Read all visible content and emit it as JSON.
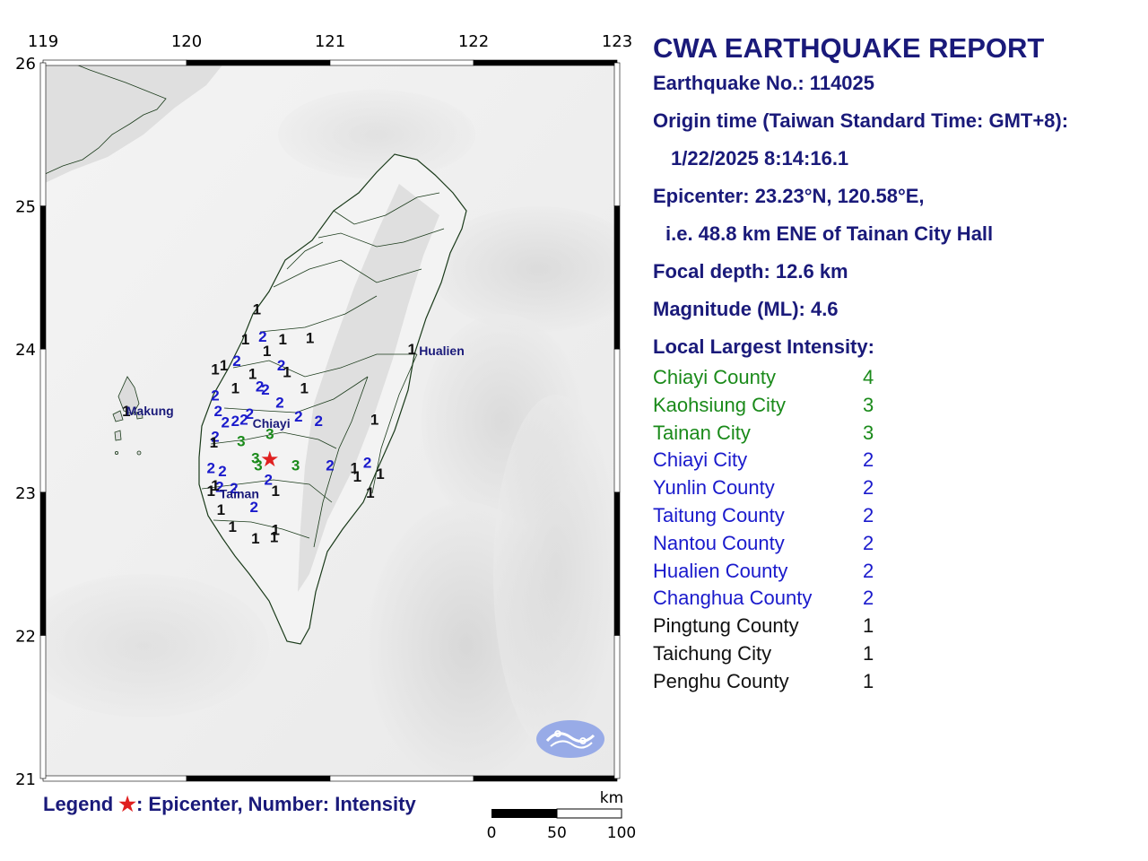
{
  "map": {
    "lon_ticks": [
      "119",
      "120",
      "121",
      "122",
      "123"
    ],
    "lat_ticks": [
      "26",
      "25",
      "24",
      "23",
      "22",
      "21"
    ],
    "extent": {
      "lon": [
        119,
        123
      ],
      "lat": [
        21,
        26
      ]
    },
    "epicenter": {
      "lon": 120.58,
      "lat": 23.23,
      "color": "#e02020",
      "symbol": "★"
    },
    "places": [
      {
        "label": "Hualien",
        "lon": 121.62,
        "lat": 23.99
      },
      {
        "label": "Makung",
        "lon": 119.58,
        "lat": 23.57
      },
      {
        "label": "Chiayi",
        "lon": 120.46,
        "lat": 23.48
      },
      {
        "label": "Tainan",
        "lon": 120.23,
        "lat": 22.99
      }
    ],
    "intensity_colors": {
      "1": "#111111",
      "2": "#1a1acc",
      "3": "#1a8a1a",
      "4": "#1a8a1a"
    },
    "stations": [
      {
        "lon": 120.49,
        "lat": 24.28,
        "v": "1"
      },
      {
        "lon": 120.41,
        "lat": 24.07,
        "v": "1"
      },
      {
        "lon": 120.53,
        "lat": 24.09,
        "v": "2"
      },
      {
        "lon": 120.67,
        "lat": 24.07,
        "v": "1"
      },
      {
        "lon": 120.86,
        "lat": 24.08,
        "v": "1"
      },
      {
        "lon": 120.56,
        "lat": 23.99,
        "v": "1"
      },
      {
        "lon": 120.35,
        "lat": 23.92,
        "v": "2"
      },
      {
        "lon": 120.26,
        "lat": 23.89,
        "v": "1"
      },
      {
        "lon": 120.2,
        "lat": 23.86,
        "v": "1"
      },
      {
        "lon": 120.66,
        "lat": 23.89,
        "v": "2"
      },
      {
        "lon": 120.46,
        "lat": 23.83,
        "v": "1"
      },
      {
        "lon": 120.7,
        "lat": 23.84,
        "v": "1"
      },
      {
        "lon": 120.51,
        "lat": 23.74,
        "v": "2"
      },
      {
        "lon": 120.55,
        "lat": 23.72,
        "v": "2"
      },
      {
        "lon": 120.34,
        "lat": 23.73,
        "v": "1"
      },
      {
        "lon": 120.82,
        "lat": 23.73,
        "v": "1"
      },
      {
        "lon": 120.2,
        "lat": 23.68,
        "v": "2"
      },
      {
        "lon": 120.65,
        "lat": 23.63,
        "v": "2"
      },
      {
        "lon": 120.22,
        "lat": 23.57,
        "v": "2"
      },
      {
        "lon": 120.27,
        "lat": 23.49,
        "v": "2"
      },
      {
        "lon": 120.44,
        "lat": 23.55,
        "v": "2"
      },
      {
        "lon": 120.4,
        "lat": 23.51,
        "v": "2"
      },
      {
        "lon": 120.34,
        "lat": 23.5,
        "v": "2"
      },
      {
        "lon": 120.78,
        "lat": 23.53,
        "v": "2"
      },
      {
        "lon": 120.92,
        "lat": 23.5,
        "v": "2"
      },
      {
        "lon": 121.31,
        "lat": 23.51,
        "v": "1"
      },
      {
        "lon": 120.58,
        "lat": 23.41,
        "v": "3"
      },
      {
        "lon": 120.38,
        "lat": 23.36,
        "v": "3"
      },
      {
        "lon": 120.2,
        "lat": 23.39,
        "v": "2"
      },
      {
        "lon": 120.19,
        "lat": 23.35,
        "v": "1"
      },
      {
        "lon": 120.48,
        "lat": 23.24,
        "v": "3"
      },
      {
        "lon": 120.5,
        "lat": 23.19,
        "v": "3"
      },
      {
        "lon": 120.76,
        "lat": 23.19,
        "v": "3"
      },
      {
        "lon": 120.17,
        "lat": 23.17,
        "v": "2"
      },
      {
        "lon": 120.25,
        "lat": 23.15,
        "v": "2"
      },
      {
        "lon": 121.0,
        "lat": 23.19,
        "v": "2"
      },
      {
        "lon": 121.26,
        "lat": 23.21,
        "v": "2"
      },
      {
        "lon": 121.17,
        "lat": 23.17,
        "v": "1"
      },
      {
        "lon": 121.19,
        "lat": 23.11,
        "v": "1"
      },
      {
        "lon": 121.35,
        "lat": 23.13,
        "v": "1"
      },
      {
        "lon": 120.57,
        "lat": 23.09,
        "v": "2"
      },
      {
        "lon": 120.23,
        "lat": 23.04,
        "v": "2"
      },
      {
        "lon": 120.33,
        "lat": 23.03,
        "v": "2"
      },
      {
        "lon": 120.17,
        "lat": 23.01,
        "v": "1"
      },
      {
        "lon": 120.2,
        "lat": 23.05,
        "v": "1"
      },
      {
        "lon": 120.62,
        "lat": 23.01,
        "v": "1"
      },
      {
        "lon": 121.28,
        "lat": 23.0,
        "v": "1"
      },
      {
        "lon": 120.47,
        "lat": 22.9,
        "v": "2"
      },
      {
        "lon": 120.24,
        "lat": 22.88,
        "v": "1"
      },
      {
        "lon": 120.32,
        "lat": 22.76,
        "v": "1"
      },
      {
        "lon": 120.48,
        "lat": 22.68,
        "v": "1"
      },
      {
        "lon": 120.62,
        "lat": 22.74,
        "v": "1"
      },
      {
        "lon": 120.61,
        "lat": 22.69,
        "v": "1"
      },
      {
        "lon": 121.57,
        "lat": 24.0,
        "v": "1"
      },
      {
        "lon": 119.58,
        "lat": 23.57,
        "v": "1"
      }
    ],
    "scale": {
      "unit": "km",
      "labels": [
        "0",
        "50",
        "100"
      ]
    }
  },
  "legend": {
    "prefix": "Legend",
    "epicenter_text": ": Epicenter, Number: Intensity"
  },
  "report": {
    "title": "CWA EARTHQUAKE REPORT",
    "number": "Earthquake No.: 114025",
    "origin_label": "Origin time (Taiwan Standard Time: GMT+8):",
    "origin_time": "1/22/2025  8:14:16.1",
    "epicenter": "Epicenter: 23.23°N, 120.58°E,",
    "epicenter_ref": "i.e. 48.8 km ENE of Tainan City Hall",
    "depth": "Focal depth: 12.6 km",
    "magnitude": "Magnitude (ML): 4.6",
    "intensity_header": "Local Largest Intensity:",
    "intensities": [
      {
        "name": "Chiayi County",
        "value": "4",
        "color": "#1a8a1a"
      },
      {
        "name": "Kaohsiung City",
        "value": "3",
        "color": "#1a8a1a"
      },
      {
        "name": "Tainan City",
        "value": "3",
        "color": "#1a8a1a"
      },
      {
        "name": "Chiayi City",
        "value": "2",
        "color": "#1a1acc"
      },
      {
        "name": "Yunlin County",
        "value": "2",
        "color": "#1a1acc"
      },
      {
        "name": "Taitung County",
        "value": "2",
        "color": "#1a1acc"
      },
      {
        "name": "Nantou County",
        "value": "2",
        "color": "#1a1acc"
      },
      {
        "name": "Hualien County",
        "value": "2",
        "color": "#1a1acc"
      },
      {
        "name": "Changhua County",
        "value": "2",
        "color": "#1a1acc"
      },
      {
        "name": "Pingtung County",
        "value": "1",
        "color": "#111111"
      },
      {
        "name": "Taichung City",
        "value": "1",
        "color": "#111111"
      },
      {
        "name": "Penghu County",
        "value": "1",
        "color": "#111111"
      }
    ]
  }
}
